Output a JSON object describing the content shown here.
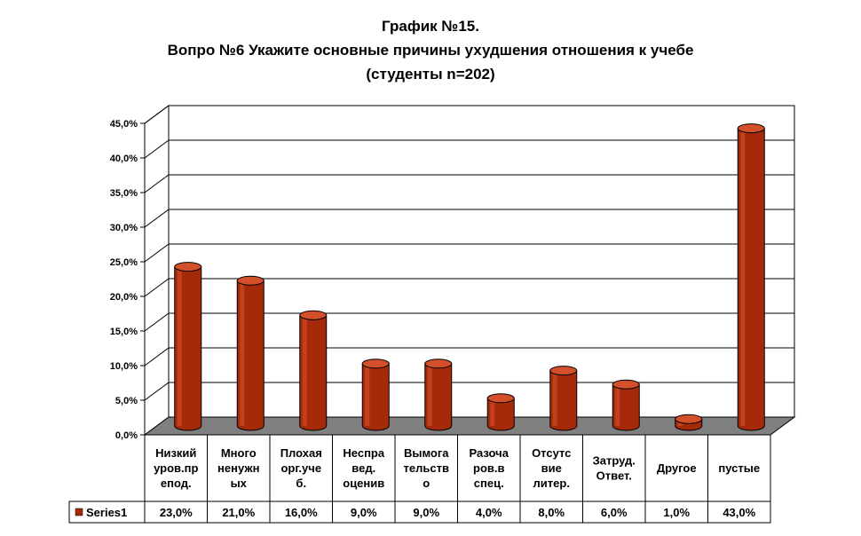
{
  "chart_data": {
    "type": "bar",
    "title_lines": [
      "График №15.",
      "Вопро №6 Укажите основные причины ухудшения отношения к учебе",
      "(студенты n=202)"
    ],
    "categories": [
      [
        "Низкий",
        "уров.пр",
        "епод."
      ],
      [
        "Много",
        "ненужн",
        "ых"
      ],
      [
        "Плохая",
        "орг.уче",
        "б."
      ],
      [
        "Неспра",
        "вед.",
        "оценив"
      ],
      [
        "Вымога",
        "тельств",
        "о"
      ],
      [
        "Разоча",
        "ров.в",
        "спец."
      ],
      [
        "Отсутс",
        "вие",
        "литер."
      ],
      [
        "Затруд.",
        "Ответ."
      ],
      [
        "Другое"
      ],
      [
        "пустые"
      ]
    ],
    "series": [
      {
        "name": "Series1",
        "values": [
          23.0,
          21.0,
          16.0,
          9.0,
          9.0,
          4.0,
          8.0,
          6.0,
          1.0,
          43.0
        ],
        "labels": [
          "23,0%",
          "21,0%",
          "16,0%",
          "9,0%",
          "9,0%",
          "4,0%",
          "8,0%",
          "6,0%",
          "1,0%",
          "43,0%"
        ],
        "color": "#a52a0a"
      }
    ],
    "y_ticks": [
      "0,0%",
      "5,0%",
      "10,0%",
      "15,0%",
      "20,0%",
      "25,0%",
      "30,0%",
      "35,0%",
      "40,0%",
      "45,0%"
    ],
    "ylim": [
      0,
      45
    ],
    "grid": true,
    "legend": "left, in data table",
    "data_table": true
  },
  "colors": {
    "bar": "#a52a0a",
    "bar_dark": "#5e1505",
    "bar_light": "#d4502a",
    "floor": "#808080",
    "grid": "#000000"
  }
}
